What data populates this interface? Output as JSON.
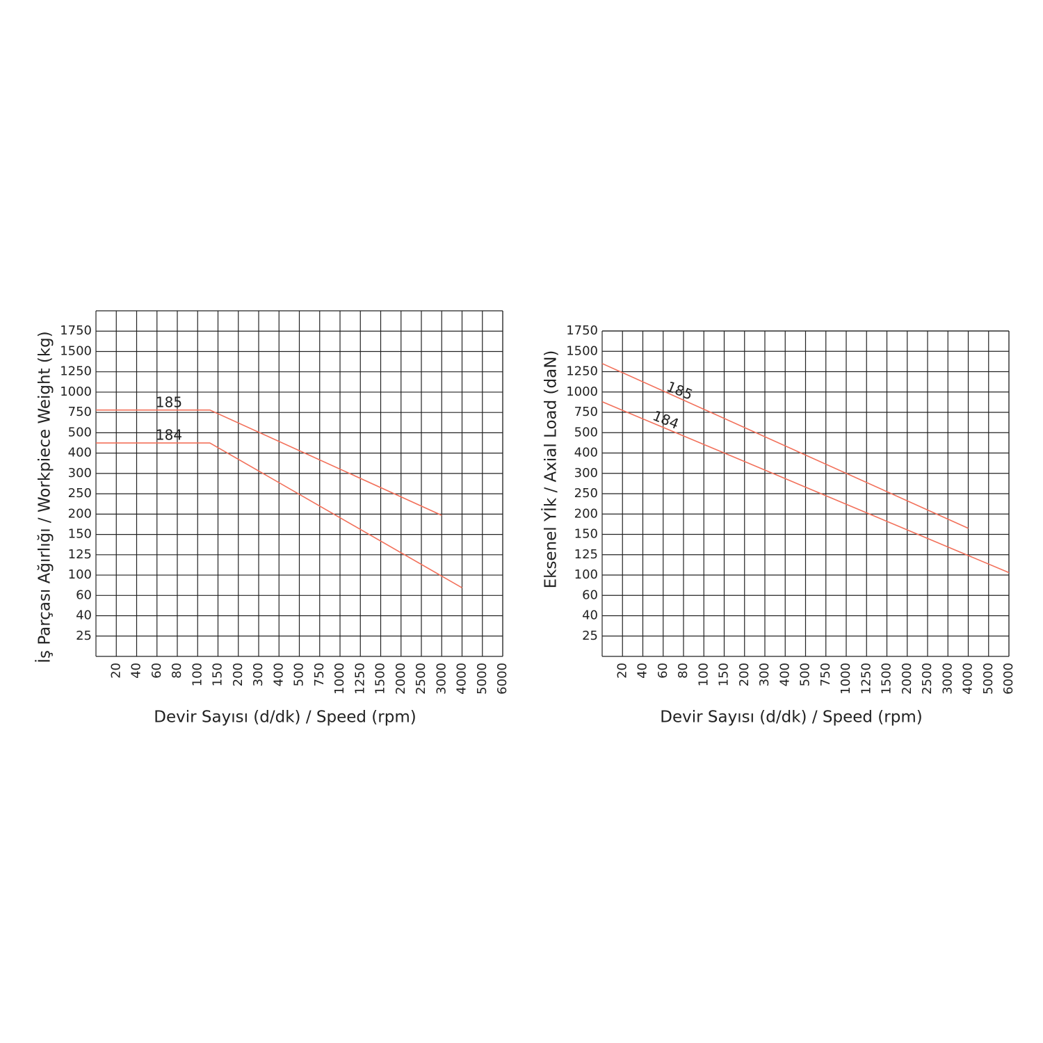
{
  "chart_data": [
    {
      "type": "line",
      "y_label": "İş Parçası Ağırlığı / Workpiece Weight    (kg)",
      "x_label": "Devir Sayısı (d/dk) / Speed (rpm)",
      "xlim": [
        0,
        6000
      ],
      "xticks": [
        20,
        40,
        60,
        80,
        100,
        150,
        200,
        300,
        400,
        500,
        750,
        1000,
        1250,
        1500,
        2000,
        2500,
        3000,
        4000,
        5000,
        6000
      ],
      "ylim": [
        0,
        2000
      ],
      "yticks": [
        25,
        40,
        60,
        100,
        125,
        150,
        200,
        250,
        300,
        400,
        500,
        750,
        1000,
        1250,
        1500,
        1750
      ],
      "grid": true,
      "series": [
        {
          "name": "185",
          "color": "#f2705a",
          "x": [
            0,
            130,
            3000
          ],
          "values": [
            780,
            780,
            197
          ]
        },
        {
          "name": "184",
          "color": "#f2705a",
          "x": [
            0,
            130,
            4000
          ],
          "values": [
            450,
            450,
            75
          ]
        }
      ]
    },
    {
      "type": "line",
      "y_label": "Eksenel Yİk /  Axial Load    (daN)",
      "x_label": "Devir Sayısı (d/dk) / Speed (rpm)",
      "xlim": [
        0,
        6000
      ],
      "xticks": [
        20,
        40,
        60,
        80,
        100,
        150,
        200,
        300,
        400,
        500,
        750,
        1000,
        1250,
        1500,
        2000,
        2500,
        3000,
        4000,
        5000,
        6000
      ],
      "ylim": [
        0,
        1750
      ],
      "yticks": [
        25,
        40,
        60,
        100,
        125,
        150,
        200,
        250,
        300,
        400,
        500,
        750,
        1000,
        1250,
        1500,
        1750
      ],
      "grid": true,
      "series": [
        {
          "name": "185",
          "color": "#f2705a",
          "x": [
            0,
            4000
          ],
          "values": [
            1350,
            165
          ]
        },
        {
          "name": "184",
          "color": "#f2705a",
          "x": [
            0,
            6000
          ],
          "values": [
            880,
            103
          ]
        }
      ]
    }
  ]
}
